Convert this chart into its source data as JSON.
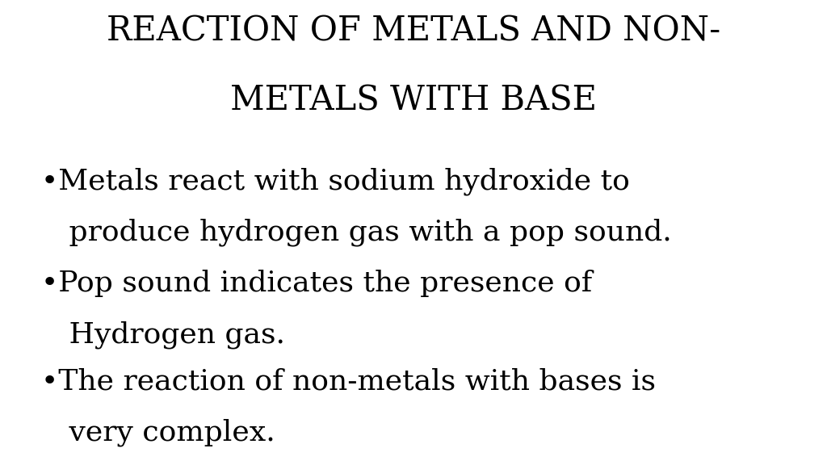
{
  "title_line1": "REACTION OF METALS AND NON-",
  "title_line2": "METALS WITH BASE",
  "bullet1_line1": "•Metals react with sodium hydroxide to",
  "bullet1_line2": "   produce hydrogen gas with a pop sound.",
  "bullet2_line1": "•Pop sound indicates the presence of",
  "bullet2_line2": "   Hydrogen gas.",
  "bullet3_line1": "•The reaction of non-metals with bases is",
  "bullet3_line2": "   very complex.",
  "background_color": "#ffffff",
  "text_color": "#000000",
  "title_fontsize": 30,
  "body_fontsize": 26,
  "font_family": "DejaVu Serif"
}
